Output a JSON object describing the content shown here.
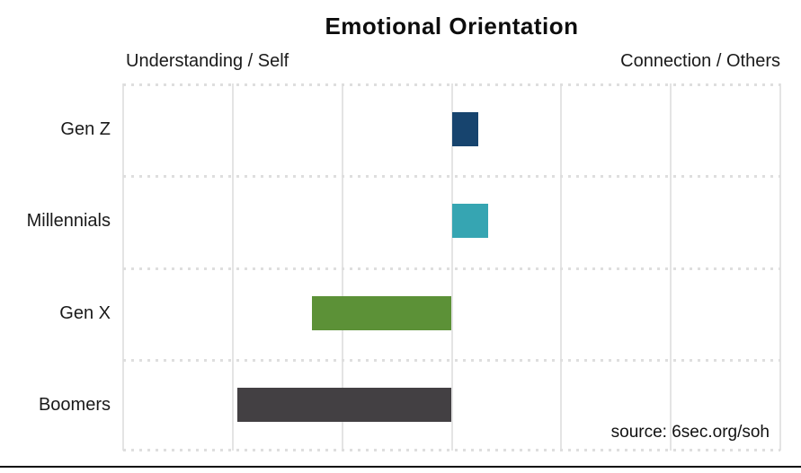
{
  "title": "Emotional Orientation",
  "axis": {
    "left_label": "Understanding / Self",
    "right_label": "Connection / Others"
  },
  "source": "source: 6sec.org/soh",
  "chart_data": {
    "type": "bar",
    "orientation": "horizontal",
    "title": "Emotional Orientation",
    "categories": [
      "Gen Z",
      "Millennials",
      "Gen X",
      "Boomers"
    ],
    "values": [
      0.24,
      0.33,
      -1.28,
      -1.96
    ],
    "bar_colors": [
      "#17446e",
      "#36a5b2",
      "#5c9137",
      "#434043"
    ],
    "baseline": 0,
    "xlim": [
      -3,
      3
    ],
    "gridline_step": 1,
    "axis_left_label": "Understanding / Self",
    "axis_right_label": "Connection / Others",
    "grid": "vertical solid lines, horizontal dotted row separators",
    "legend": "none",
    "annotations": [
      "source: 6sec.org/soh"
    ]
  },
  "colors": {
    "background": "#ffffff",
    "gridline": "#e4e4e4",
    "dotted_separator": "#dedede",
    "title_text": "#0d0d0d",
    "label_text": "#1a1a1a",
    "bottom_border": "#0a0a0a"
  }
}
